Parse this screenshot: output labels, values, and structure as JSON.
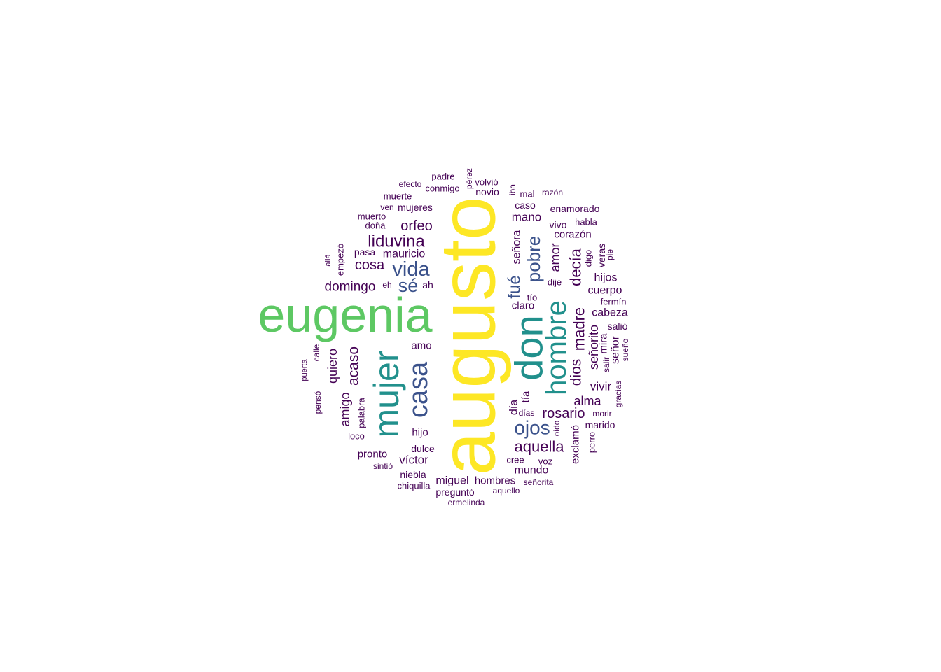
{
  "chart_data": {
    "type": "wordcloud",
    "color_scale": [
      "#440154",
      "#3b528b",
      "#21908c",
      "#5dc863",
      "#fde725"
    ],
    "words": [
      {
        "text": "augusto",
        "weight": 5,
        "rotated": true
      },
      {
        "text": "eugenia",
        "weight": 4,
        "rotated": false
      },
      {
        "text": "don",
        "weight": 3,
        "rotated": true
      },
      {
        "text": "mujer",
        "weight": 3,
        "rotated": true
      },
      {
        "text": "hombre",
        "weight": 3,
        "rotated": true
      },
      {
        "text": "casa",
        "weight": 2,
        "rotated": true
      },
      {
        "text": "vida",
        "weight": 2,
        "rotated": false
      },
      {
        "text": "sé",
        "weight": 2,
        "rotated": false
      },
      {
        "text": "ojos",
        "weight": 2,
        "rotated": false
      },
      {
        "text": "pobre",
        "weight": 2,
        "rotated": true
      },
      {
        "text": "fué",
        "weight": 2,
        "rotated": true
      },
      {
        "text": "liduvina",
        "weight": 1,
        "rotated": false
      },
      {
        "text": "orfeo",
        "weight": 1,
        "rotated": false
      },
      {
        "text": "cosa",
        "weight": 1,
        "rotated": false
      },
      {
        "text": "domingo",
        "weight": 1,
        "rotated": false
      },
      {
        "text": "mauricio",
        "weight": 1,
        "rotated": false
      },
      {
        "text": "mujeres",
        "weight": 1,
        "rotated": false
      },
      {
        "text": "doña",
        "weight": 1,
        "rotated": false
      },
      {
        "text": "pasa",
        "weight": 1,
        "rotated": false
      },
      {
        "text": "ah",
        "weight": 1,
        "rotated": false
      },
      {
        "text": "eh",
        "weight": 1,
        "rotated": false
      },
      {
        "text": "acaso",
        "weight": 1,
        "rotated": true
      },
      {
        "text": "quiero",
        "weight": 1,
        "rotated": true
      },
      {
        "text": "amigo",
        "weight": 1,
        "rotated": true
      },
      {
        "text": "palabra",
        "weight": 1,
        "rotated": true
      },
      {
        "text": "loco",
        "weight": 1,
        "rotated": false
      },
      {
        "text": "pronto",
        "weight": 1,
        "rotated": false
      },
      {
        "text": "sintió",
        "weight": 1,
        "rotated": false
      },
      {
        "text": "hijo",
        "weight": 1,
        "rotated": false
      },
      {
        "text": "amo",
        "weight": 1,
        "rotated": false
      },
      {
        "text": "dulce",
        "weight": 1,
        "rotated": false
      },
      {
        "text": "víctor",
        "weight": 1,
        "rotated": false
      },
      {
        "text": "niebla",
        "weight": 1,
        "rotated": false
      },
      {
        "text": "chiquilla",
        "weight": 1,
        "rotated": false
      },
      {
        "text": "miguel",
        "weight": 1,
        "rotated": false
      },
      {
        "text": "preguntó",
        "weight": 1,
        "rotated": false
      },
      {
        "text": "ermelinda",
        "weight": 1,
        "rotated": false
      },
      {
        "text": "hombres",
        "weight": 1,
        "rotated": false
      },
      {
        "text": "aquello",
        "weight": 1,
        "rotated": false
      },
      {
        "text": "señorita",
        "weight": 1,
        "rotated": false
      },
      {
        "text": "mundo",
        "weight": 1,
        "rotated": false
      },
      {
        "text": "cree",
        "weight": 1,
        "rotated": false
      },
      {
        "text": "voz",
        "weight": 1,
        "rotated": false
      },
      {
        "text": "aquella",
        "weight": 1,
        "rotated": false
      },
      {
        "text": "rosario",
        "weight": 1,
        "rotated": false
      },
      {
        "text": "alma",
        "weight": 1,
        "rotated": false
      },
      {
        "text": "días",
        "weight": 1,
        "rotated": false
      },
      {
        "text": "día",
        "weight": 1,
        "rotated": true
      },
      {
        "text": "tía",
        "weight": 1,
        "rotated": true
      },
      {
        "text": "oido",
        "weight": 1,
        "rotated": true
      },
      {
        "text": "exclamó",
        "weight": 1,
        "rotated": true
      },
      {
        "text": "perro",
        "weight": 1,
        "rotated": true
      },
      {
        "text": "marido",
        "weight": 1,
        "rotated": false
      },
      {
        "text": "morir",
        "weight": 1,
        "rotated": false
      },
      {
        "text": "vivir",
        "weight": 1,
        "rotated": false
      },
      {
        "text": "dios",
        "weight": 1,
        "rotated": true
      },
      {
        "text": "madre",
        "weight": 1,
        "rotated": true
      },
      {
        "text": "señorito",
        "weight": 1,
        "rotated": true
      },
      {
        "text": "mira",
        "weight": 1,
        "rotated": true
      },
      {
        "text": "salir",
        "weight": 1,
        "rotated": true
      },
      {
        "text": "señor",
        "weight": 1,
        "rotated": true
      },
      {
        "text": "sueño",
        "weight": 1,
        "rotated": true
      },
      {
        "text": "gracias",
        "weight": 1,
        "rotated": true
      },
      {
        "text": "salió",
        "weight": 1,
        "rotated": false
      },
      {
        "text": "cabeza",
        "weight": 1,
        "rotated": false
      },
      {
        "text": "fermín",
        "weight": 1,
        "rotated": false
      },
      {
        "text": "cuerpo",
        "weight": 1,
        "rotated": false
      },
      {
        "text": "hijos",
        "weight": 1,
        "rotated": false
      },
      {
        "text": "decía",
        "weight": 1,
        "rotated": true
      },
      {
        "text": "amor",
        "weight": 1,
        "rotated": true
      },
      {
        "text": "digo",
        "weight": 1,
        "rotated": true
      },
      {
        "text": "veras",
        "weight": 1,
        "rotated": true
      },
      {
        "text": "pie",
        "weight": 1,
        "rotated": true
      },
      {
        "text": "dije",
        "weight": 1,
        "rotated": false
      },
      {
        "text": "tío",
        "weight": 1,
        "rotated": false
      },
      {
        "text": "claro",
        "weight": 1,
        "rotated": false
      },
      {
        "text": "señora",
        "weight": 1,
        "rotated": true
      },
      {
        "text": "corazón",
        "weight": 1,
        "rotated": false
      },
      {
        "text": "habla",
        "weight": 1,
        "rotated": false
      },
      {
        "text": "vivo",
        "weight": 1,
        "rotated": false
      },
      {
        "text": "mano",
        "weight": 1,
        "rotated": false
      },
      {
        "text": "enamorado",
        "weight": 1,
        "rotated": false
      },
      {
        "text": "caso",
        "weight": 1,
        "rotated": false
      },
      {
        "text": "mal",
        "weight": 1,
        "rotated": false
      },
      {
        "text": "razón",
        "weight": 1,
        "rotated": false
      },
      {
        "text": "iba",
        "weight": 1,
        "rotated": true
      },
      {
        "text": "novio",
        "weight": 1,
        "rotated": false
      },
      {
        "text": "volvió",
        "weight": 1,
        "rotated": false
      },
      {
        "text": "pérez",
        "weight": 1,
        "rotated": true
      },
      {
        "text": "padre",
        "weight": 1,
        "rotated": false
      },
      {
        "text": "conmigo",
        "weight": 1,
        "rotated": false
      },
      {
        "text": "efecto",
        "weight": 1,
        "rotated": false
      },
      {
        "text": "muerte",
        "weight": 1,
        "rotated": false
      },
      {
        "text": "ven",
        "weight": 1,
        "rotated": false
      },
      {
        "text": "muerto",
        "weight": 1,
        "rotated": false
      },
      {
        "text": "empezó",
        "weight": 1,
        "rotated": true
      },
      {
        "text": "allá",
        "weight": 1,
        "rotated": true
      },
      {
        "text": "calle",
        "weight": 1,
        "rotated": true
      },
      {
        "text": "puerta",
        "weight": 1,
        "rotated": true
      },
      {
        "text": "pensó",
        "weight": 1,
        "rotated": true
      }
    ]
  }
}
